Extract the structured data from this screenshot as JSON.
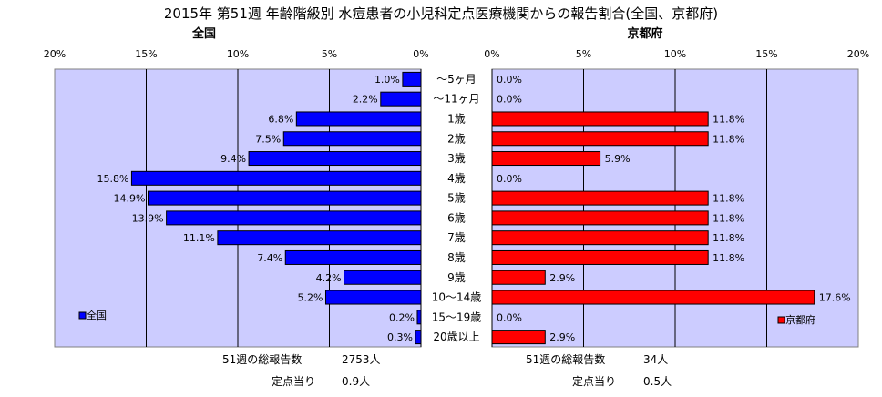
{
  "chart_data": {
    "type": "bar",
    "title": "2015年 第51週 年齢階級別 水痘患者の小児科定点医療機関からの報告割合(全国、京都府)",
    "categories": [
      "～5ヶ月",
      "～11ヶ月",
      "1歳",
      "2歳",
      "3歳",
      "4歳",
      "5歳",
      "6歳",
      "7歳",
      "8歳",
      "9歳",
      "10～14歳",
      "15～19歳",
      "20歳以上"
    ],
    "x_ticks": [
      "0%",
      "5%",
      "10%",
      "15%",
      "20%"
    ],
    "xlim": [
      0,
      20
    ],
    "grid": true,
    "series": [
      {
        "name": "全国",
        "panel_title": "全国",
        "color": "#0000ff",
        "plot_bg": "#ccccff",
        "legend_position": "bottom-left",
        "values": [
          1.0,
          2.2,
          6.8,
          7.5,
          9.4,
          15.8,
          14.9,
          13.9,
          11.1,
          7.4,
          4.2,
          5.2,
          0.2,
          0.3
        ],
        "labels": [
          "1.0%",
          "2.2%",
          "6.8%",
          "7.5%",
          "9.4%",
          "15.8%",
          "14.9%",
          "13.9%",
          "11.1%",
          "7.4%",
          "4.2%",
          "5.2%",
          "0.2%",
          "0.3%"
        ]
      },
      {
        "name": "京都府",
        "panel_title": "京都府",
        "color": "#ff0000",
        "plot_bg": "#ccccff",
        "legend_position": "bottom-right",
        "values": [
          0.0,
          0.0,
          11.8,
          11.8,
          5.9,
          0.0,
          11.8,
          11.8,
          11.8,
          11.8,
          2.9,
          17.6,
          0.0,
          2.9
        ],
        "labels": [
          "0.0%",
          "0.0%",
          "11.8%",
          "11.8%",
          "5.9%",
          "0.0%",
          "11.8%",
          "11.8%",
          "11.8%",
          "11.8%",
          "2.9%",
          "17.6%",
          "0.0%",
          "2.9%"
        ]
      }
    ]
  },
  "footer": {
    "national": {
      "total_label": "51週の総報告数",
      "total_value": "2753人",
      "per_label": "定点当り",
      "per_value": "0.9人"
    },
    "kyoto": {
      "total_label": "51週の総報告数",
      "total_value": "34人",
      "per_label": "定点当り",
      "per_value": "0.5人"
    }
  }
}
